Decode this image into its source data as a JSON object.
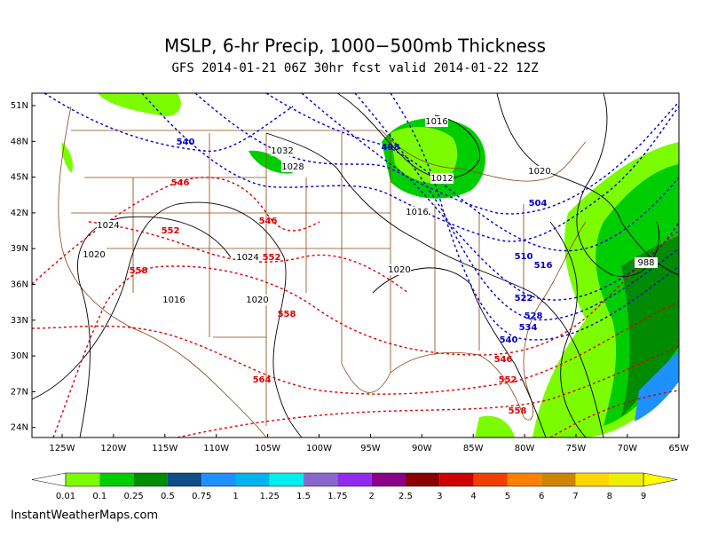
{
  "header": {
    "title": "MSLP, 6-hr Precip, 1000−500mb Thickness",
    "subtitle": "GFS 2014-01-21 06Z 30hr fcst valid 2014-01-22 12Z"
  },
  "map": {
    "lat_labels": [
      "51N",
      "48N",
      "45N",
      "42N",
      "39N",
      "36N",
      "33N",
      "30N",
      "27N",
      "24N"
    ],
    "lon_labels": [
      "125W",
      "120W",
      "115W",
      "110W",
      "105W",
      "100W",
      "95W",
      "90W",
      "85W",
      "80W",
      "75W",
      "70W",
      "65W"
    ],
    "pressure_labels": [
      "1016",
      "1032",
      "1028",
      "1012",
      "1020",
      "1016",
      "1024",
      "1020",
      "1024",
      "1020",
      "1016",
      "1020",
      "988"
    ],
    "cold_thickness_labels": [
      "540",
      "498",
      "504",
      "510",
      "516",
      "522",
      "528",
      "534",
      "540"
    ],
    "warm_thickness_labels": [
      "546",
      "552",
      "546",
      "552",
      "558",
      "558",
      "564",
      "546",
      "552",
      "558"
    ]
  },
  "colorbar": {
    "labels": [
      "0.01",
      "0.1",
      "0.25",
      "0.5",
      "0.75",
      "1",
      "1.25",
      "1.5",
      "1.75",
      "2",
      "2.5",
      "3",
      "4",
      "5",
      "6",
      "7",
      "8",
      "9"
    ],
    "colors": [
      "#ffffff",
      "#7cfc00",
      "#00cd00",
      "#008b00",
      "#104e8b",
      "#1e90ff",
      "#00b2ee",
      "#00eeee",
      "#8968cd",
      "#912cee",
      "#8b008b",
      "#8b0000",
      "#cd0000",
      "#ee4000",
      "#ff7f00",
      "#cd8500",
      "#ffd700",
      "#eeee00",
      "#ffff00"
    ]
  },
  "footer": "InstantWeatherMaps.com"
}
